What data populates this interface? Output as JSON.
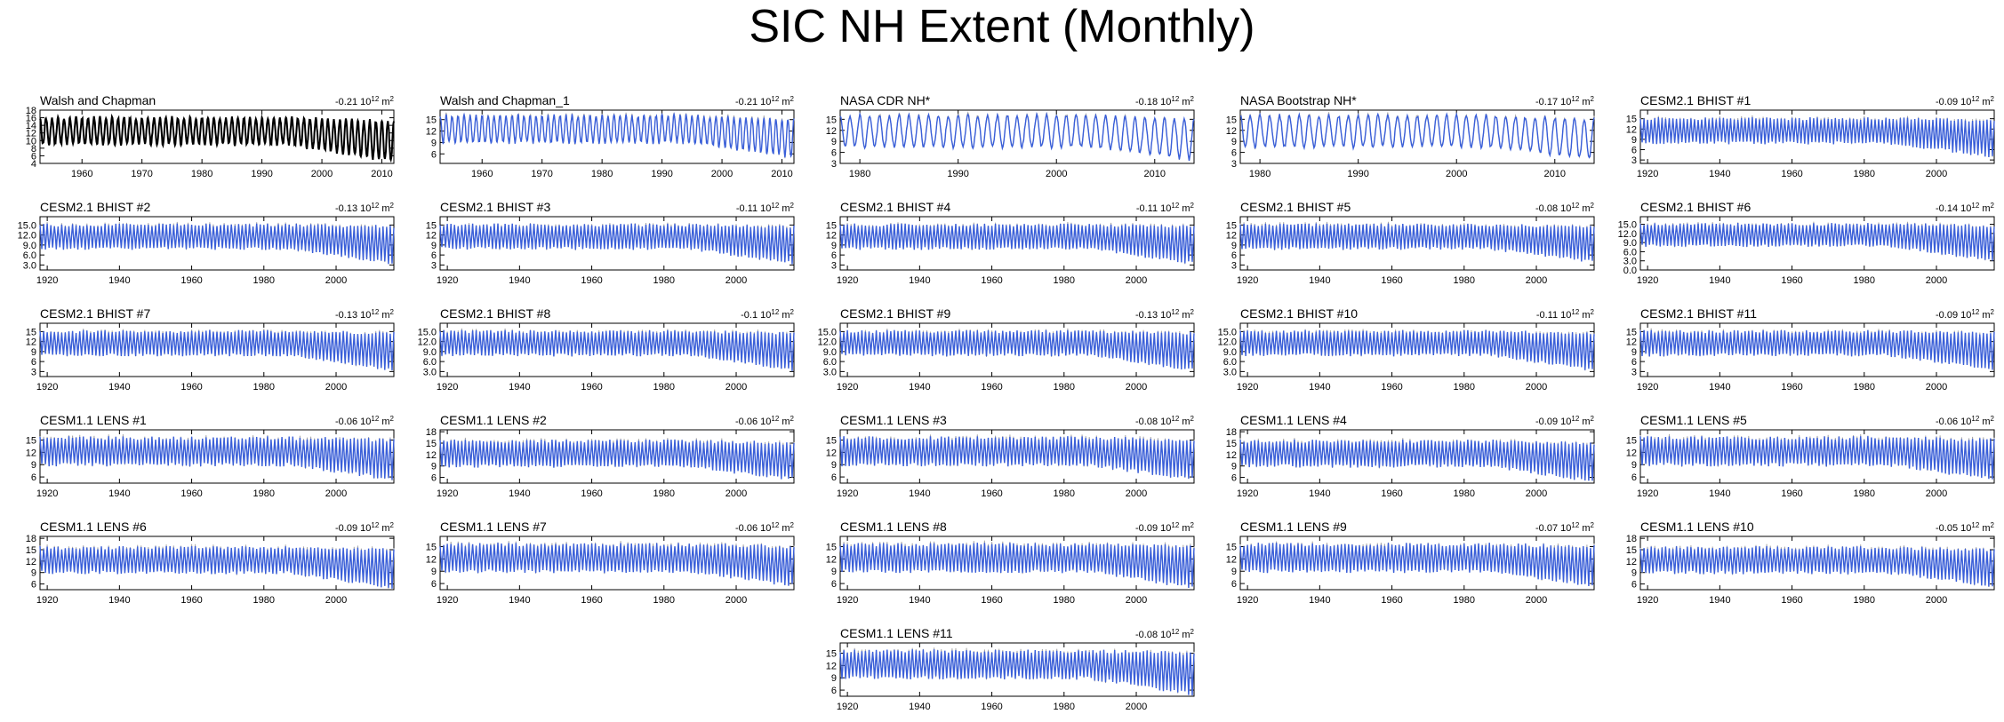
{
  "title": "SIC NH Extent (Monthly)",
  "colors": {
    "observed": "#000000",
    "simulated": "#3a5fd9",
    "reference": "#a8a8a8"
  },
  "chart_data": [
    {
      "type": "line",
      "title": "Walsh and Chapman",
      "trend": "-0.21",
      "unit_base": "10",
      "unit_exp": "12",
      "unit_tail": "m",
      "unit_sup": "2",
      "x_ticks": [
        "1960",
        "1970",
        "1980",
        "1990",
        "2000",
        "2010"
      ],
      "y_ticks": [
        "4",
        "6",
        "8",
        "10",
        "12",
        "14",
        "16",
        "18"
      ],
      "xlim": [
        1953,
        2012
      ],
      "ylim": [
        4,
        18
      ],
      "series": [
        {
          "name": "Walsh and Chapman",
          "style": "observed",
          "max_start": 16,
          "max_end": 15,
          "min_start": 9,
          "min_end": 4.5
        }
      ]
    },
    {
      "type": "line",
      "title": "Walsh and Chapman_1",
      "trend": "-0.21",
      "unit_base": "10",
      "unit_exp": "12",
      "unit_tail": "m",
      "unit_sup": "2",
      "x_ticks": [
        "1960",
        "1970",
        "1980",
        "1990",
        "2000",
        "2010"
      ],
      "y_ticks": [
        "6",
        "9",
        "12",
        "15"
      ],
      "xlim": [
        1953,
        2012
      ],
      "ylim": [
        3.5,
        17.5
      ],
      "series": [
        {
          "name": "Walsh and Chapman_1",
          "style": "simulated",
          "max_start": 16,
          "max_end": 15,
          "min_start": 9,
          "min_end": 5
        }
      ]
    },
    {
      "type": "line",
      "title": "NASA CDR NH*",
      "trend": "-0.18",
      "unit_base": "10",
      "unit_exp": "12",
      "unit_tail": "m",
      "unit_sup": "2",
      "x_ticks": [
        "1980",
        "1990",
        "2000",
        "2010"
      ],
      "y_ticks": [
        "3",
        "6",
        "9",
        "12",
        "15"
      ],
      "xlim": [
        1978,
        2014
      ],
      "ylim": [
        3,
        17.5
      ],
      "series": [
        {
          "name": "NASA CDR NH*",
          "style": "simulated",
          "max_start": 16,
          "max_end": 15,
          "min_start": 7.5,
          "min_end": 4
        }
      ]
    },
    {
      "type": "line",
      "title": "NASA Bootstrap NH*",
      "trend": "-0.17",
      "unit_base": "10",
      "unit_exp": "12",
      "unit_tail": "m",
      "unit_sup": "2",
      "x_ticks": [
        "1980",
        "1990",
        "2000",
        "2010"
      ],
      "y_ticks": [
        "3",
        "6",
        "9",
        "12",
        "15"
      ],
      "xlim": [
        1978,
        2014
      ],
      "ylim": [
        3,
        17.5
      ],
      "series": [
        {
          "name": "NASA Bootstrap NH*",
          "style": "simulated",
          "max_start": 16,
          "max_end": 15,
          "min_start": 7.5,
          "min_end": 4
        }
      ]
    },
    {
      "type": "line",
      "title": "CESM2.1 BHIST #1",
      "trend": "-0.09",
      "unit_base": "10",
      "unit_exp": "12",
      "unit_tail": "m",
      "unit_sup": "2",
      "x_ticks": [
        "1920",
        "1940",
        "1960",
        "1980",
        "2000"
      ],
      "y_ticks": [
        "3",
        "6",
        "9",
        "12",
        "15"
      ],
      "xlim": [
        1918,
        2016
      ],
      "ylim": [
        2,
        17.5
      ],
      "series": [
        {
          "name": "CESM2.1 BHIST #1",
          "style": "simulated",
          "max_start": 15,
          "max_end": 14.5,
          "min_start": 8,
          "min_end": 4
        }
      ]
    },
    {
      "type": "line",
      "title": "CESM2.1 BHIST #2",
      "trend": "-0.13",
      "unit_base": "10",
      "unit_exp": "12",
      "unit_tail": "m",
      "unit_sup": "2",
      "x_ticks": [
        "1920",
        "1940",
        "1960",
        "1980",
        "2000"
      ],
      "y_ticks": [
        "3.0",
        "6.0",
        "9.0",
        "12.0",
        "15.0"
      ],
      "xlim": [
        1918,
        2016
      ],
      "ylim": [
        1.5,
        17.5
      ],
      "series": [
        {
          "name": "CESM2.1 BHIST #2",
          "style": "simulated",
          "max_start": 15,
          "max_end": 14.5,
          "min_start": 8,
          "min_end": 3.5
        }
      ]
    },
    {
      "type": "line",
      "title": "CESM2.1 BHIST #3",
      "trend": "-0.11",
      "unit_base": "10",
      "unit_exp": "12",
      "unit_tail": "m",
      "unit_sup": "2",
      "x_ticks": [
        "1920",
        "1940",
        "1960",
        "1980",
        "2000"
      ],
      "y_ticks": [
        "3",
        "6",
        "9",
        "12",
        "15"
      ],
      "xlim": [
        1918,
        2016
      ],
      "ylim": [
        1.5,
        17.5
      ],
      "series": [
        {
          "name": "CESM2.1 BHIST #3",
          "style": "simulated",
          "max_start": 15,
          "max_end": 14.5,
          "min_start": 8,
          "min_end": 3.5
        }
      ]
    },
    {
      "type": "line",
      "title": "CESM2.1 BHIST #4",
      "trend": "-0.11",
      "unit_base": "10",
      "unit_exp": "12",
      "unit_tail": "m",
      "unit_sup": "2",
      "x_ticks": [
        "1920",
        "1940",
        "1960",
        "1980",
        "2000"
      ],
      "y_ticks": [
        "3",
        "6",
        "9",
        "12",
        "15"
      ],
      "xlim": [
        1918,
        2016
      ],
      "ylim": [
        1.5,
        17.5
      ],
      "series": [
        {
          "name": "CESM2.1 BHIST #4",
          "style": "simulated",
          "max_start": 15,
          "max_end": 14.5,
          "min_start": 8,
          "min_end": 3.5
        }
      ]
    },
    {
      "type": "line",
      "title": "CESM2.1 BHIST #5",
      "trend": "-0.08",
      "unit_base": "10",
      "unit_exp": "12",
      "unit_tail": "m",
      "unit_sup": "2",
      "x_ticks": [
        "1920",
        "1940",
        "1960",
        "1980",
        "2000"
      ],
      "y_ticks": [
        "3",
        "6",
        "9",
        "12",
        "15"
      ],
      "xlim": [
        1918,
        2016
      ],
      "ylim": [
        1.5,
        17.5
      ],
      "series": [
        {
          "name": "CESM2.1 BHIST #5",
          "style": "simulated",
          "max_start": 15,
          "max_end": 14.5,
          "min_start": 8,
          "min_end": 4
        }
      ]
    },
    {
      "type": "line",
      "title": "CESM2.1 BHIST #6",
      "trend": "-0.14",
      "unit_base": "10",
      "unit_exp": "12",
      "unit_tail": "m",
      "unit_sup": "2",
      "x_ticks": [
        "1920",
        "1940",
        "1960",
        "1980",
        "2000"
      ],
      "y_ticks": [
        "0.0",
        "3.0",
        "6.0",
        "9.0",
        "12.0",
        "15.0"
      ],
      "xlim": [
        1918,
        2016
      ],
      "ylim": [
        0,
        17.5
      ],
      "series": [
        {
          "name": "CESM2.1 BHIST #6",
          "style": "simulated",
          "max_start": 15,
          "max_end": 14.5,
          "min_start": 8,
          "min_end": 3
        }
      ]
    },
    {
      "type": "line",
      "title": "CESM2.1 BHIST #7",
      "trend": "-0.13",
      "unit_base": "10",
      "unit_exp": "12",
      "unit_tail": "m",
      "unit_sup": "2",
      "x_ticks": [
        "1920",
        "1940",
        "1960",
        "1980",
        "2000"
      ],
      "y_ticks": [
        "3",
        "6",
        "9",
        "12",
        "15"
      ],
      "xlim": [
        1918,
        2016
      ],
      "ylim": [
        1.5,
        17.5
      ],
      "series": [
        {
          "name": "CESM2.1 BHIST #7",
          "style": "simulated",
          "max_start": 15,
          "max_end": 14.5,
          "min_start": 8,
          "min_end": 3.5
        }
      ]
    },
    {
      "type": "line",
      "title": "CESM2.1 BHIST #8",
      "trend": "-0.1",
      "unit_base": "10",
      "unit_exp": "12",
      "unit_tail": "m",
      "unit_sup": "2",
      "x_ticks": [
        "1920",
        "1940",
        "1960",
        "1980",
        "2000"
      ],
      "y_ticks": [
        "3.0",
        "6.0",
        "9.0",
        "12.0",
        "15.0"
      ],
      "xlim": [
        1918,
        2016
      ],
      "ylim": [
        1.5,
        17.5
      ],
      "series": [
        {
          "name": "CESM2.1 BHIST #8",
          "style": "simulated",
          "max_start": 15,
          "max_end": 14.5,
          "min_start": 8,
          "min_end": 3.5
        }
      ]
    },
    {
      "type": "line",
      "title": "CESM2.1 BHIST #9",
      "trend": "-0.13",
      "unit_base": "10",
      "unit_exp": "12",
      "unit_tail": "m",
      "unit_sup": "2",
      "x_ticks": [
        "1920",
        "1940",
        "1960",
        "1980",
        "2000"
      ],
      "y_ticks": [
        "3.0",
        "6.0",
        "9.0",
        "12.0",
        "15.0"
      ],
      "xlim": [
        1918,
        2016
      ],
      "ylim": [
        1.5,
        17.5
      ],
      "series": [
        {
          "name": "CESM2.1 BHIST #9",
          "style": "simulated",
          "max_start": 15,
          "max_end": 14.5,
          "min_start": 8,
          "min_end": 3.5
        }
      ]
    },
    {
      "type": "line",
      "title": "CESM2.1 BHIST #10",
      "trend": "-0.11",
      "unit_base": "10",
      "unit_exp": "12",
      "unit_tail": "m",
      "unit_sup": "2",
      "x_ticks": [
        "1920",
        "1940",
        "1960",
        "1980",
        "2000"
      ],
      "y_ticks": [
        "3.0",
        "6.0",
        "9.0",
        "12.0",
        "15.0"
      ],
      "xlim": [
        1918,
        2016
      ],
      "ylim": [
        1.5,
        17.5
      ],
      "series": [
        {
          "name": "CESM2.1 BHIST #10",
          "style": "simulated",
          "max_start": 15,
          "max_end": 14.5,
          "min_start": 8,
          "min_end": 3.5
        }
      ]
    },
    {
      "type": "line",
      "title": "CESM2.1 BHIST #11",
      "trend": "-0.09",
      "unit_base": "10",
      "unit_exp": "12",
      "unit_tail": "m",
      "unit_sup": "2",
      "x_ticks": [
        "1920",
        "1940",
        "1960",
        "1980",
        "2000"
      ],
      "y_ticks": [
        "3",
        "6",
        "9",
        "12",
        "15"
      ],
      "xlim": [
        1918,
        2016
      ],
      "ylim": [
        1.5,
        17.5
      ],
      "series": [
        {
          "name": "CESM2.1 BHIST #11",
          "style": "simulated",
          "max_start": 15,
          "max_end": 14.5,
          "min_start": 8,
          "min_end": 3.5
        }
      ]
    },
    {
      "type": "line",
      "title": "CESM1.1 LENS #1",
      "trend": "-0.06",
      "unit_base": "10",
      "unit_exp": "12",
      "unit_tail": "m",
      "unit_sup": "2",
      "x_ticks": [
        "1920",
        "1940",
        "1960",
        "1980",
        "2000"
      ],
      "y_ticks": [
        "6",
        "9",
        "12",
        "15"
      ],
      "xlim": [
        1918,
        2016
      ],
      "ylim": [
        4.5,
        17.5
      ],
      "series": [
        {
          "name": "CESM1.1 LENS #1",
          "style": "simulated",
          "max_start": 15.5,
          "max_end": 15,
          "min_start": 9,
          "min_end": 5.5
        }
      ]
    },
    {
      "type": "line",
      "title": "CESM1.1 LENS #2",
      "trend": "-0.06",
      "unit_base": "10",
      "unit_exp": "12",
      "unit_tail": "m",
      "unit_sup": "2",
      "x_ticks": [
        "1920",
        "1940",
        "1960",
        "1980",
        "2000"
      ],
      "y_ticks": [
        "6",
        "9",
        "12",
        "15",
        "18"
      ],
      "xlim": [
        1918,
        2016
      ],
      "ylim": [
        4.5,
        18.5
      ],
      "series": [
        {
          "name": "CESM1.1 LENS #2",
          "style": "simulated",
          "max_start": 15.5,
          "max_end": 15,
          "min_start": 9,
          "min_end": 5.5
        }
      ]
    },
    {
      "type": "line",
      "title": "CESM1.1 LENS #3",
      "trend": "-0.08",
      "unit_base": "10",
      "unit_exp": "12",
      "unit_tail": "m",
      "unit_sup": "2",
      "x_ticks": [
        "1920",
        "1940",
        "1960",
        "1980",
        "2000"
      ],
      "y_ticks": [
        "6",
        "9",
        "12",
        "15"
      ],
      "xlim": [
        1918,
        2016
      ],
      "ylim": [
        4.5,
        17.5
      ],
      "series": [
        {
          "name": "CESM1.1 LENS #3",
          "style": "simulated",
          "max_start": 15.5,
          "max_end": 15,
          "min_start": 9,
          "min_end": 5.5
        }
      ]
    },
    {
      "type": "line",
      "title": "CESM1.1 LENS #4",
      "trend": "-0.09",
      "unit_base": "10",
      "unit_exp": "12",
      "unit_tail": "m",
      "unit_sup": "2",
      "x_ticks": [
        "1920",
        "1940",
        "1960",
        "1980",
        "2000"
      ],
      "y_ticks": [
        "6",
        "9",
        "12",
        "15",
        "18"
      ],
      "xlim": [
        1918,
        2016
      ],
      "ylim": [
        4.5,
        18.5
      ],
      "series": [
        {
          "name": "CESM1.1 LENS #4",
          "style": "simulated",
          "max_start": 15.5,
          "max_end": 15,
          "min_start": 9,
          "min_end": 5
        }
      ]
    },
    {
      "type": "line",
      "title": "CESM1.1 LENS #5",
      "trend": "-0.06",
      "unit_base": "10",
      "unit_exp": "12",
      "unit_tail": "m",
      "unit_sup": "2",
      "x_ticks": [
        "1920",
        "1940",
        "1960",
        "1980",
        "2000"
      ],
      "y_ticks": [
        "6",
        "9",
        "12",
        "15"
      ],
      "xlim": [
        1918,
        2016
      ],
      "ylim": [
        4.5,
        17.5
      ],
      "series": [
        {
          "name": "CESM1.1 LENS #5",
          "style": "simulated",
          "max_start": 15.5,
          "max_end": 15,
          "min_start": 9,
          "min_end": 5.5
        }
      ]
    },
    {
      "type": "line",
      "title": "CESM1.1 LENS #6",
      "trend": "-0.09",
      "unit_base": "10",
      "unit_exp": "12",
      "unit_tail": "m",
      "unit_sup": "2",
      "x_ticks": [
        "1920",
        "1940",
        "1960",
        "1980",
        "2000"
      ],
      "y_ticks": [
        "6",
        "9",
        "12",
        "15",
        "18"
      ],
      "xlim": [
        1918,
        2016
      ],
      "ylim": [
        4.5,
        18.5
      ],
      "series": [
        {
          "name": "CESM1.1 LENS #6",
          "style": "simulated",
          "max_start": 15.5,
          "max_end": 15,
          "min_start": 9,
          "min_end": 5
        }
      ]
    },
    {
      "type": "line",
      "title": "CESM1.1 LENS #7",
      "trend": "-0.06",
      "unit_base": "10",
      "unit_exp": "12",
      "unit_tail": "m",
      "unit_sup": "2",
      "x_ticks": [
        "1920",
        "1940",
        "1960",
        "1980",
        "2000"
      ],
      "y_ticks": [
        "6",
        "9",
        "12",
        "15"
      ],
      "xlim": [
        1918,
        2016
      ],
      "ylim": [
        4.5,
        17.5
      ],
      "series": [
        {
          "name": "CESM1.1 LENS #7",
          "style": "simulated",
          "max_start": 15.5,
          "max_end": 15,
          "min_start": 9,
          "min_end": 5.5
        }
      ]
    },
    {
      "type": "line",
      "title": "CESM1.1 LENS #8",
      "trend": "-0.09",
      "unit_base": "10",
      "unit_exp": "12",
      "unit_tail": "m",
      "unit_sup": "2",
      "x_ticks": [
        "1920",
        "1940",
        "1960",
        "1980",
        "2000"
      ],
      "y_ticks": [
        "6",
        "9",
        "12",
        "15"
      ],
      "xlim": [
        1918,
        2016
      ],
      "ylim": [
        4.5,
        17.5
      ],
      "series": [
        {
          "name": "CESM1.1 LENS #8",
          "style": "simulated",
          "max_start": 15.5,
          "max_end": 15,
          "min_start": 9,
          "min_end": 5
        }
      ]
    },
    {
      "type": "line",
      "title": "CESM1.1 LENS #9",
      "trend": "-0.07",
      "unit_base": "10",
      "unit_exp": "12",
      "unit_tail": "m",
      "unit_sup": "2",
      "x_ticks": [
        "1920",
        "1940",
        "1960",
        "1980",
        "2000"
      ],
      "y_ticks": [
        "6",
        "9",
        "12",
        "15"
      ],
      "xlim": [
        1918,
        2016
      ],
      "ylim": [
        4.5,
        17.5
      ],
      "series": [
        {
          "name": "CESM1.1 LENS #9",
          "style": "simulated",
          "max_start": 15.5,
          "max_end": 15,
          "min_start": 9,
          "min_end": 5.5
        }
      ]
    },
    {
      "type": "line",
      "title": "CESM1.1 LENS #10",
      "trend": "-0.05",
      "unit_base": "10",
      "unit_exp": "12",
      "unit_tail": "m",
      "unit_sup": "2",
      "x_ticks": [
        "1920",
        "1940",
        "1960",
        "1980",
        "2000"
      ],
      "y_ticks": [
        "6",
        "9",
        "12",
        "15",
        "18"
      ],
      "xlim": [
        1918,
        2016
      ],
      "ylim": [
        4.5,
        18.5
      ],
      "series": [
        {
          "name": "CESM1.1 LENS #10",
          "style": "simulated",
          "max_start": 15.5,
          "max_end": 15,
          "min_start": 9,
          "min_end": 5.5
        }
      ]
    },
    {
      "type": "line",
      "title": "CESM1.1 LENS #11",
      "trend": "-0.08",
      "unit_base": "10",
      "unit_exp": "12",
      "unit_tail": "m",
      "unit_sup": "2",
      "x_ticks": [
        "1920",
        "1940",
        "1960",
        "1980",
        "2000"
      ],
      "y_ticks": [
        "6",
        "9",
        "12",
        "15"
      ],
      "xlim": [
        1918,
        2016
      ],
      "ylim": [
        4.5,
        17.5
      ],
      "series": [
        {
          "name": "CESM1.1 LENS #11",
          "style": "simulated",
          "max_start": 15.5,
          "max_end": 15,
          "min_start": 9,
          "min_end": 5
        }
      ]
    }
  ]
}
